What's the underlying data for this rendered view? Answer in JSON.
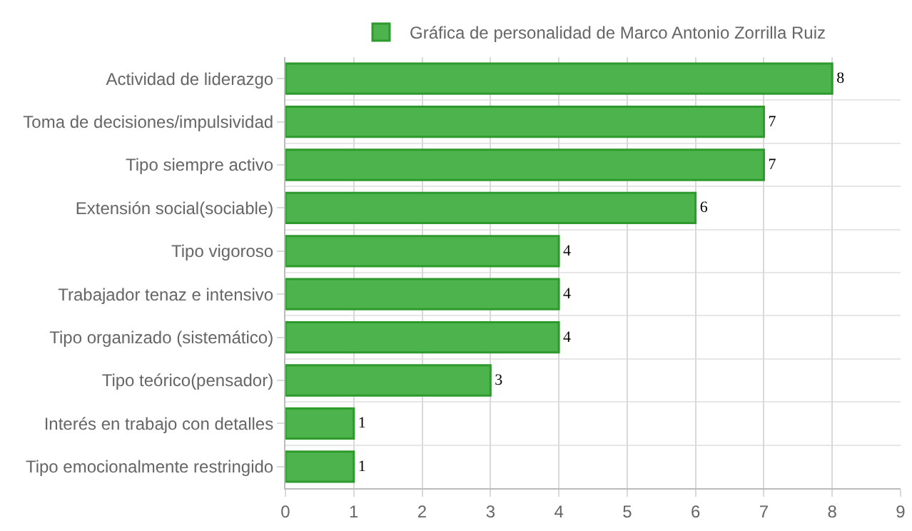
{
  "chart_data": {
    "type": "bar",
    "orientation": "horizontal",
    "categories": [
      "Actividad de liderazgo",
      "Toma de decisiones/impulsividad",
      "Tipo siempre activo",
      "Extensión social(sociable)",
      "Tipo vigoroso",
      "Trabajador tenaz e intensivo",
      "Tipo organizado (sistemático)",
      "Tipo teórico(pensador)",
      "Interés en trabajo con detalles",
      "Tipo emocionalmente restringido"
    ],
    "series": [
      {
        "name": "Gráfica de personalidad de Marco Antonio Zorrilla Ruiz",
        "color": "#4db34d",
        "values": [
          8,
          7,
          7,
          6,
          4,
          4,
          4,
          3,
          1,
          1
        ]
      }
    ],
    "xlim": [
      0,
      9
    ],
    "xticks": [
      0,
      1,
      2,
      3,
      4,
      5,
      6,
      7,
      8,
      9
    ],
    "grid": true,
    "legend": "top",
    "data_labels": true
  }
}
